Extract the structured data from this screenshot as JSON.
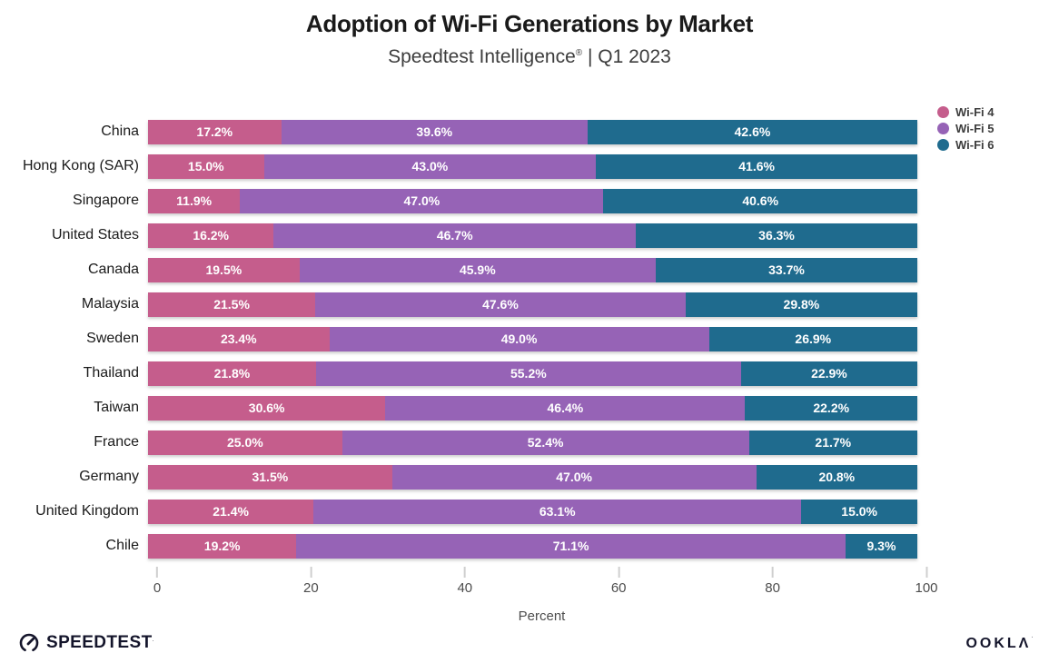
{
  "header": {
    "title": "Adoption of Wi-Fi Generations by Market",
    "subtitle_brand": "Speedtest Intelligence",
    "subtitle_mark": "®",
    "subtitle_rest": " | Q1 2023"
  },
  "chart_data": {
    "type": "bar",
    "variant": "horizontal-stacked-percent",
    "title": "Adoption of Wi-Fi Generations by Market",
    "subtitle": "Speedtest Intelligence® | Q1 2023",
    "categories": [
      "China",
      "Hong Kong (SAR)",
      "Singapore",
      "United States",
      "Canada",
      "Malaysia",
      "Sweden",
      "Thailand",
      "Taiwan",
      "France",
      "Germany",
      "United Kingdom",
      "Chile"
    ],
    "series": [
      {
        "name": "Wi-Fi 4",
        "color": "#C55D8C",
        "values": [
          17.2,
          15.0,
          11.9,
          16.2,
          19.5,
          21.5,
          23.4,
          21.8,
          30.6,
          25.0,
          31.5,
          21.4,
          19.2
        ]
      },
      {
        "name": "Wi-Fi 5",
        "color": "#9663B6",
        "values": [
          39.6,
          43.0,
          47.0,
          46.7,
          45.9,
          47.6,
          49.0,
          55.2,
          46.4,
          52.4,
          47.0,
          63.1,
          71.1
        ]
      },
      {
        "name": "Wi-Fi 6",
        "color": "#1F6B8E",
        "values": [
          42.6,
          41.6,
          40.6,
          36.3,
          33.7,
          29.8,
          26.9,
          22.9,
          22.2,
          21.7,
          20.8,
          15.0,
          9.3
        ]
      }
    ],
    "value_suffix": "%",
    "xlabel": "Percent",
    "xticks": [
      0,
      20,
      40,
      60,
      80,
      100
    ],
    "xlim": [
      0,
      100
    ],
    "grid": false,
    "legend_position": "top-right",
    "value_labels": "inside-white-bold"
  },
  "footer": {
    "speedtest_label": "SPEEDTEST",
    "speedtest_tm": "˙",
    "ookla_label": "OOKLΛ",
    "ookla_tm": "˙"
  }
}
